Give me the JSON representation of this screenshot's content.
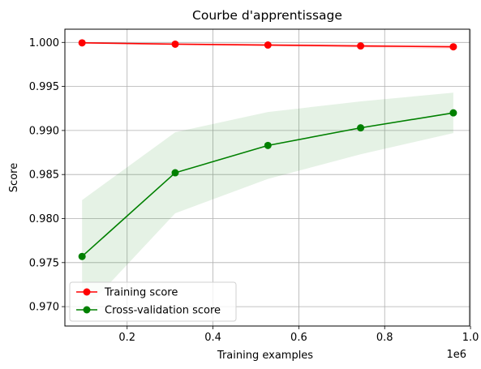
{
  "chart_data": {
    "type": "line",
    "title": "Courbe d'apprentissage",
    "xlabel": "Training examples",
    "ylabel": "Score",
    "x_offset_label": "1e6",
    "x": [
      0.095,
      0.312,
      0.528,
      0.744,
      0.96
    ],
    "xlim": [
      0.055,
      0.998
    ],
    "ylim": [
      0.9678,
      1.0015
    ],
    "xticks": [
      0.2,
      0.4,
      0.6,
      0.8,
      1.0
    ],
    "xtick_labels": [
      "0.2",
      "0.4",
      "0.6",
      "0.8",
      "1.0"
    ],
    "yticks": [
      0.97,
      0.975,
      0.98,
      0.985,
      0.99,
      0.995,
      1.0
    ],
    "ytick_labels": [
      "0.970",
      "0.975",
      "0.980",
      "0.985",
      "0.990",
      "0.995",
      "1.000"
    ],
    "grid": true,
    "legend_position": "lower-left",
    "series": [
      {
        "name": "Training score",
        "color": "#ff0000",
        "values": [
          0.99995,
          0.9998,
          0.9997,
          0.9996,
          0.9995
        ],
        "band_upper": [
          1.0,
          0.9999,
          0.99985,
          0.9998,
          0.99975
        ],
        "band_lower": [
          0.9999,
          0.9997,
          0.99955,
          0.9994,
          0.99925
        ],
        "band_color": "#ff0000"
      },
      {
        "name": "Cross-validation score",
        "color": "#008000",
        "values": [
          0.9757,
          0.9852,
          0.9883,
          0.9903,
          0.992
        ],
        "band_upper": [
          0.9821,
          0.9898,
          0.9921,
          0.9933,
          0.9943
        ],
        "band_lower": [
          0.9693,
          0.9806,
          0.9845,
          0.9873,
          0.9897
        ],
        "band_color": "#008000"
      }
    ]
  }
}
